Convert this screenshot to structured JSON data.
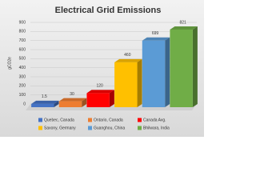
{
  "chart_data": {
    "type": "bar3d",
    "title": "Electrical Grid Emissions",
    "y_label": "gCO2e",
    "categories": [
      "Quebec, Canada",
      "Ontario, Canada",
      "Canada Avg.",
      "Saxony, Germany",
      "Guanghou, China",
      "Bhilwara, India"
    ],
    "values": [
      1.5,
      30,
      120,
      460,
      699,
      821
    ],
    "colors": [
      "#4472c4",
      "#ed7d31",
      "#ff0000",
      "#ffc000",
      "#5b9bd5",
      "#70ad47"
    ],
    "ylim": [
      0,
      900
    ],
    "yticks": [
      0,
      100,
      200,
      300,
      400,
      500,
      600,
      700,
      800,
      900
    ],
    "grid": true,
    "legend": "bottom"
  }
}
